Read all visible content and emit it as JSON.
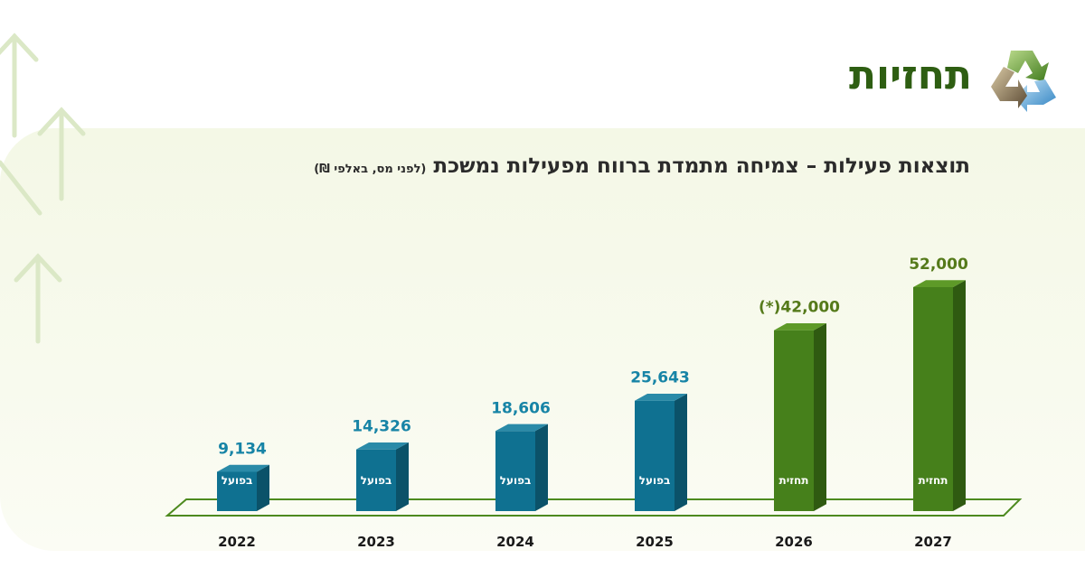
{
  "header": {
    "title": "תחזיות",
    "logo_icon": "recycle-icon"
  },
  "colors": {
    "actual": "#0f7191",
    "actual_side": "#0b5269",
    "actual_top": "#2a8aa8",
    "forecast": "#46801b",
    "forecast_side": "#2f5a11",
    "forecast_top": "#5e9a28",
    "actual_label": "#1784a6",
    "forecast_label": "#557a1a",
    "title": "#2e5e12"
  },
  "chart_data": {
    "type": "bar",
    "title": "תוצאות פעילות – צמיחה מתמדת ברווח מפעילות נמשכת",
    "subtitle": "(לפני מס, באלפי ₪)",
    "categories": [
      "2022",
      "2023",
      "2024",
      "2025",
      "2026",
      "2027"
    ],
    "values": [
      9134,
      14326,
      18606,
      25643,
      42000,
      52000
    ],
    "value_labels": [
      "9,134",
      "14,326",
      "18,606",
      "25,643",
      "(*)42,000",
      "52,000"
    ],
    "bar_labels": [
      "בפועל",
      "בפועל",
      "בפועל",
      "בפועל",
      "תחזית",
      "תחזית"
    ],
    "kinds": [
      "actual",
      "actual",
      "actual",
      "actual",
      "forecast",
      "forecast"
    ],
    "ylim": [
      0,
      52000
    ]
  }
}
